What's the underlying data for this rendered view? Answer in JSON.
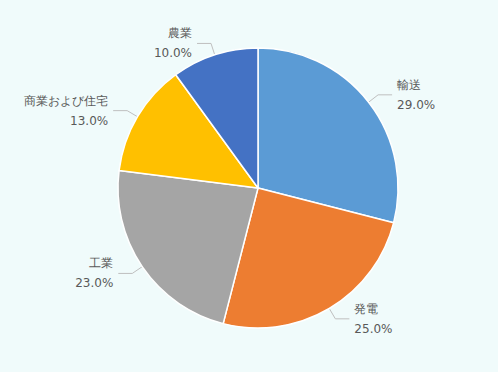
{
  "chart_data": {
    "type": "pie",
    "categories": [
      "輸送",
      "発電",
      "工業",
      "商業および住宅",
      "農業"
    ],
    "values": [
      29.0,
      25.0,
      23.0,
      13.0,
      10.0
    ],
    "value_labels": [
      "29.0%",
      "25.0%",
      "23.0%",
      "13.0%",
      "10.0%"
    ],
    "colors": [
      "#5b9bd5",
      "#ed7d31",
      "#a5a5a5",
      "#ffc000",
      "#4472c4"
    ],
    "data_labels": true
  }
}
